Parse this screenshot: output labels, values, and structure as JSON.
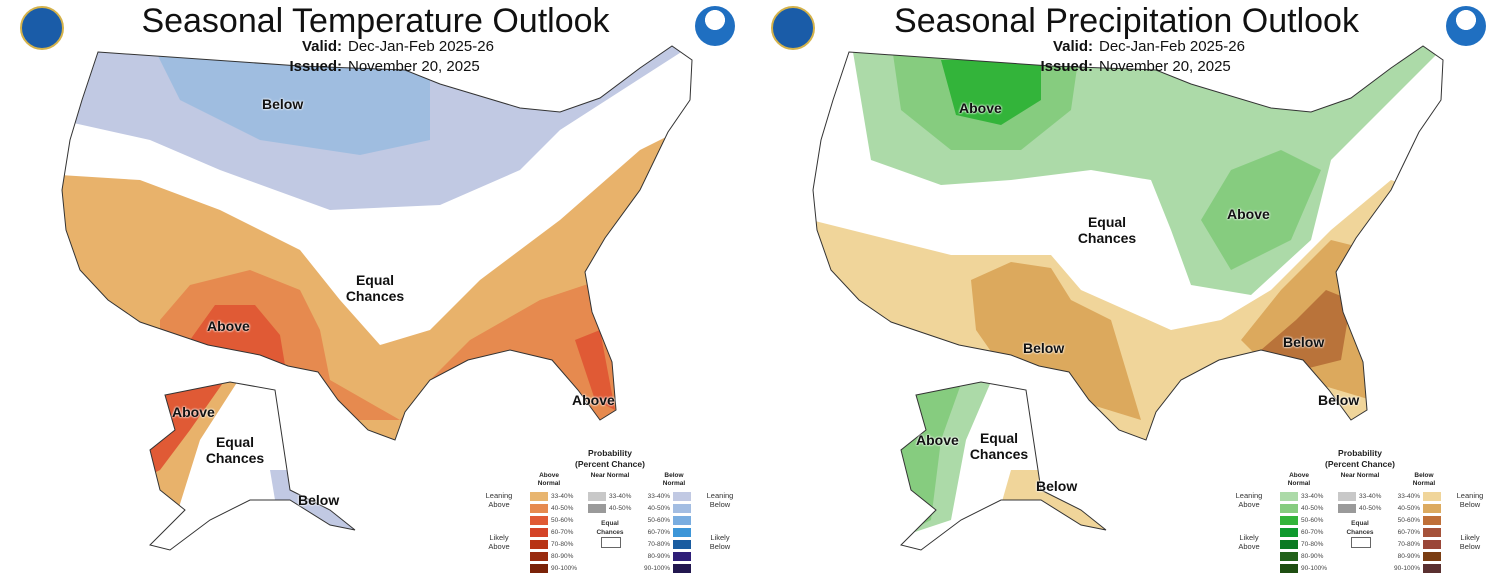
{
  "temperature": {
    "title": "Seasonal Temperature Outlook",
    "valid_label": "Valid:",
    "valid": "Dec-Jan-Feb 2025-26",
    "issued_label": "Issued:",
    "issued": "November 20, 2025",
    "labels": {
      "below": "Below",
      "equal": "Equal Chances",
      "above": "Above",
      "alaska_above": "Above",
      "alaska_equal": "Equal Chances",
      "alaska_below": "Below",
      "florida_above": "Above"
    },
    "colors": {
      "below_33": "#c1c9e3",
      "below_40": "#9fbde0",
      "above_33": "#e8b26b",
      "above_40": "#e68a4f",
      "above_50": "#e05a35"
    },
    "legend": {
      "title": "Probability",
      "subtitle": "(Percent Chance)",
      "above_header": "Above Normal",
      "near_header": "Near Normal",
      "below_header": "Below Normal",
      "leaning_above": "Leaning Above",
      "likely_above": "Likely Above",
      "leaning_below": "Leaning Below",
      "likely_below": "Likely Below",
      "equal": "Equal Chances",
      "ranges": [
        "33-40%",
        "40-50%",
        "50-60%",
        "60-70%",
        "70-80%",
        "80-90%",
        "90-100%"
      ],
      "above_colors": [
        "#e8b56f",
        "#e68a4f",
        "#e05a35",
        "#d44428",
        "#b83415",
        "#992a0e",
        "#7a2208"
      ],
      "near_colors": [
        "#c8c8c8",
        "#9a9a9a"
      ],
      "below_colors": [
        "#c1c9e3",
        "#a3bde2",
        "#79ade0",
        "#3d96d8",
        "#1a5ca0",
        "#2e1e78",
        "#22174f"
      ]
    }
  },
  "precipitation": {
    "title": "Seasonal Precipitation Outlook",
    "valid_label": "Valid:",
    "valid": "Dec-Jan-Feb 2025-26",
    "issued_label": "Issued:",
    "issued": "November 20, 2025",
    "labels": {
      "above_north": "Above",
      "equal": "Equal Chances",
      "above_ohio": "Above",
      "below_south": "Below",
      "below_se": "Below",
      "below_fl": "Below",
      "alaska_above": "Above",
      "alaska_equal": "Equal Chances",
      "alaska_below": "Below"
    },
    "colors": {
      "above_33": "#acdaa8",
      "above_40": "#86cc7f",
      "above_50": "#33b43a",
      "below_33": "#f0d59a",
      "below_40": "#dca95d",
      "below_50": "#b9733a"
    },
    "legend": {
      "title": "Probability",
      "subtitle": "(Percent Chance)",
      "above_header": "Above Normal",
      "near_header": "Near Normal",
      "below_header": "Below Normal",
      "leaning_above": "Leaning Above",
      "likely_above": "Likely Above",
      "leaning_below": "Leaning Below",
      "likely_below": "Likely Below",
      "equal": "Equal Chances",
      "ranges": [
        "33-40%",
        "40-50%",
        "50-60%",
        "60-70%",
        "70-80%",
        "80-90%",
        "90-100%"
      ],
      "above_colors": [
        "#acdaa8",
        "#86cc7f",
        "#33b43a",
        "#0f9a2e",
        "#0b7a22",
        "#22611a",
        "#1e4e12"
      ],
      "near_colors": [
        "#c8c8c8",
        "#9a9a9a"
      ],
      "below_colors": [
        "#f0d59a",
        "#dcaa5f",
        "#bf6f38",
        "#a5523a",
        "#9a4638",
        "#7a3d12",
        "#5a3030"
      ]
    }
  }
}
